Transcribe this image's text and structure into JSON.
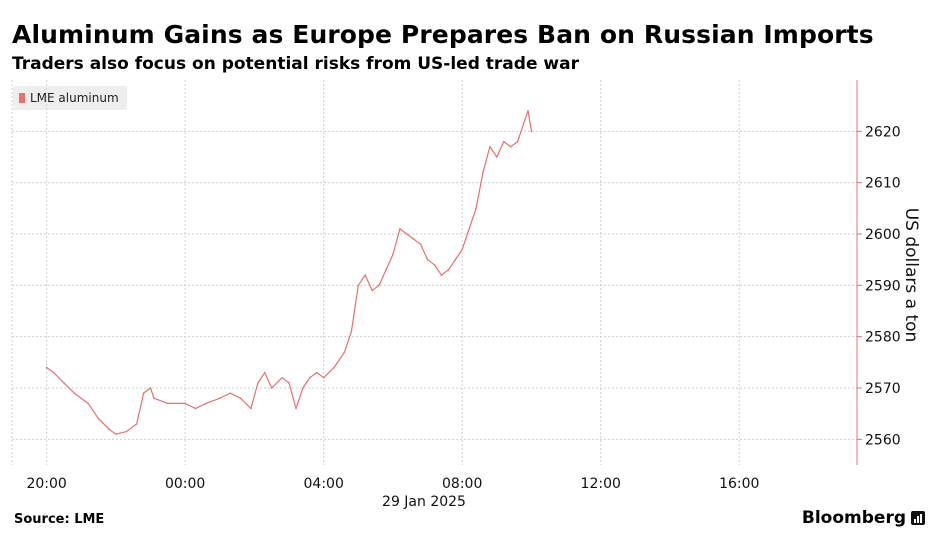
{
  "header": {
    "title": "Aluminum Gains as Europe Prepares Ban on Russian Imports",
    "subtitle": "Traders also focus on potential risks from US-led trade war"
  },
  "footer": {
    "source": "Source: LME",
    "brand": "Bloomberg"
  },
  "colors": {
    "series": "#e8716f",
    "grid": "#cfcfcf",
    "axis": "#e8716f"
  },
  "chart_data": {
    "type": "line",
    "title": "Aluminum Gains as Europe Prepares Ban on Russian Imports",
    "subtitle": "Traders also focus on potential risks from US-led trade war",
    "xlabel": "29 Jan 2025",
    "ylabel": "US dollars a ton",
    "x_ticks": [
      "20:00",
      "00:00",
      "04:00",
      "08:00",
      "12:00",
      "16:00"
    ],
    "x_tick_hours": [
      20,
      24,
      28,
      32,
      36,
      40
    ],
    "x_range_hours": [
      19,
      43.4
    ],
    "y_ticks": [
      2560,
      2570,
      2580,
      2590,
      2600,
      2610,
      2620
    ],
    "ylim": [
      2555,
      2630
    ],
    "y_axis_side": "right",
    "grid": true,
    "legend": "top-left",
    "series": [
      {
        "name": "LME aluminum",
        "x_hours": [
          20.0,
          20.2,
          20.5,
          20.8,
          21.2,
          21.5,
          21.8,
          22.0,
          22.3,
          22.6,
          22.8,
          23.0,
          23.1,
          23.5,
          24.0,
          24.3,
          24.6,
          25.0,
          25.3,
          25.6,
          25.9,
          26.1,
          26.3,
          26.5,
          26.8,
          27.0,
          27.2,
          27.4,
          27.6,
          27.8,
          28.0,
          28.3,
          28.6,
          28.8,
          29.0,
          29.2,
          29.4,
          29.6,
          29.8,
          30.0,
          30.2,
          30.4,
          30.6,
          30.8,
          31.0,
          31.2,
          31.4,
          31.6,
          31.8,
          32.0,
          32.2,
          32.4,
          32.6,
          32.8,
          33.0,
          33.2,
          33.4,
          33.6,
          33.9,
          34.0
        ],
        "values": [
          2574,
          2573,
          2571,
          2569,
          2567,
          2564,
          2562,
          2561,
          2561.5,
          2563,
          2569,
          2570,
          2568,
          2567,
          2567,
          2566,
          2567,
          2568,
          2569,
          2568,
          2566,
          2571,
          2573,
          2570,
          2572,
          2571,
          2566,
          2570,
          2572,
          2573,
          2572,
          2574,
          2577,
          2581,
          2590,
          2592,
          2589,
          2590,
          2593,
          2596,
          2601,
          2600,
          2599,
          2598,
          2595,
          2594,
          2592,
          2593,
          2595,
          2597,
          2601,
          2605,
          2612,
          2617,
          2615,
          2618,
          2617,
          2618,
          2624,
          2620
        ]
      }
    ]
  }
}
